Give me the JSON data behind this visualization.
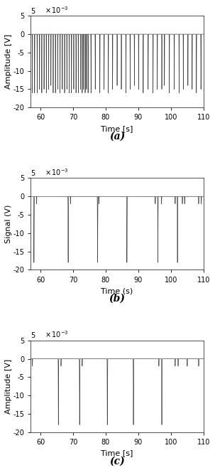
{
  "xlim": [
    57,
    110
  ],
  "ylim_raw": [
    -20,
    5
  ],
  "yticks_raw": [
    -20,
    -15,
    -10,
    -5,
    0,
    5
  ],
  "xticks": [
    60,
    70,
    80,
    90,
    100,
    110
  ],
  "scale": 0.001,
  "ylabel_a": "Amplitude [V]",
  "ylabel_b": "Signal (V)",
  "ylabel_c": "Amplitude [V]",
  "xlabel_a": "Time [s]",
  "xlabel_b": "Time (s)",
  "xlabel_c": "Time [s]",
  "label_a": "(a)",
  "label_b": "(b)",
  "label_c": "(c)",
  "line_color": "#444444",
  "bg_color": "#ffffff",
  "figsize": [
    3.03,
    6.68
  ],
  "dpi": 100,
  "spike_a_dense": [
    57.5,
    58.2,
    59.0,
    59.7,
    60.4,
    61.1,
    61.8,
    62.5,
    63.2,
    63.9,
    64.6,
    65.3,
    66.0,
    66.7,
    67.4,
    68.1,
    68.8,
    69.5,
    70.2,
    70.9,
    71.6,
    72.3,
    72.8,
    73.2,
    73.7,
    74.1,
    74.6
  ],
  "spike_a_sparse": [
    75.5,
    76.8,
    78.2,
    79.5,
    80.8,
    82.1,
    83.5,
    84.8,
    86.2,
    87.5,
    88.8,
    90.1,
    91.5,
    93.0,
    94.5,
    95.8,
    97.2,
    98.0,
    99.5,
    101.0,
    102.5,
    103.8,
    105.2,
    106.5,
    107.8,
    109.2
  ],
  "spike_b_times": [
    58.0,
    58.8,
    68.5,
    69.2,
    77.5,
    77.9,
    86.5,
    95.2,
    96.0,
    97.1,
    101.3,
    102.0,
    103.5,
    104.2,
    108.5,
    109.3
  ],
  "spike_b_amps": [
    -18,
    -2,
    -18,
    -2,
    -18,
    -2,
    -18,
    -2,
    -18,
    -2,
    -2,
    -18,
    -2,
    -2,
    -2,
    -2
  ],
  "spike_c_times": [
    57.5,
    65.5,
    66.3,
    72.0,
    72.8,
    80.5,
    88.5,
    96.3,
    97.2,
    101.3,
    102.2,
    105.0,
    108.5
  ],
  "spike_c_amps": [
    -2,
    -18,
    -2,
    -18,
    -2,
    -18,
    -18,
    -2,
    -18,
    -2,
    -2,
    -2,
    -2
  ]
}
